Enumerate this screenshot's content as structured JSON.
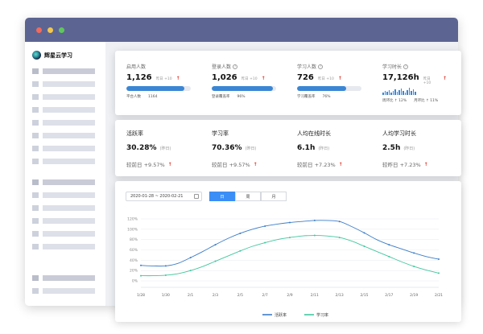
{
  "app": {
    "name": "辉星云学习"
  },
  "stats": [
    {
      "title": "启用人数",
      "value": "1,126",
      "compare": "昨日 +10",
      "bar": 0.9,
      "foot_label": "平台人数",
      "foot_value": "1164"
    },
    {
      "title": "登录人数",
      "value": "1,026",
      "compare": "昨日 +10",
      "bar": 0.95,
      "foot_label": "登录覆盖率",
      "foot_value": "96%"
    },
    {
      "title": "学习人数",
      "value": "726",
      "compare": "昨日 +10",
      "bar": 0.76,
      "foot_label": "学习覆盖率",
      "foot_value": "76%"
    },
    {
      "title": "学习时长",
      "value": "17,126h",
      "compare": "昨日 +10",
      "foot_a": "周环比 ↑ 12%",
      "foot_b": "月环比 ↑ 11%"
    }
  ],
  "metrics": [
    {
      "title": "活跃率",
      "value": "30.28%",
      "note": "(昨日)",
      "foot": "较前日 +9.57%"
    },
    {
      "title": "学习率",
      "value": "70.36%",
      "note": "(昨日)",
      "foot": "较前日 +9.57%"
    },
    {
      "title": "人均在线时长",
      "value": "6.1h",
      "note": "(昨日)",
      "foot": "较前日 +7.23%"
    },
    {
      "title": "人均学习时长",
      "value": "2.5h",
      "note": "(昨日)",
      "foot": "较昨日 +7.23%"
    }
  ],
  "chart_controls": {
    "date_range": "2020-01-28  ~  2020-02-21",
    "segments": [
      "日",
      "周",
      "月"
    ],
    "active_segment": "日"
  },
  "colors": {
    "accent": "#3a8ef6",
    "series1": "#3d7dc8",
    "series2": "#43c69e",
    "titlebar": "#5c6592"
  },
  "chart_data": {
    "type": "line",
    "x": [
      "1/28",
      "1/29",
      "1/30",
      "1/31",
      "2/1",
      "2/2",
      "2/3",
      "2/4",
      "2/5",
      "2/6",
      "2/7",
      "2/8",
      "2/9",
      "2/10",
      "2/11",
      "2/12",
      "2/13",
      "2/14",
      "2/15",
      "2/16",
      "2/17",
      "2/18",
      "2/19",
      "2/20",
      "2/21"
    ],
    "tick_labels": [
      "1/28",
      "1/30",
      "2/1",
      "2/3",
      "2/5",
      "2/7",
      "2/9",
      "2/11",
      "2/13",
      "2/15",
      "2/17",
      "2/19",
      "2/21"
    ],
    "series": [
      {
        "name": "活跃率",
        "values": [
          30,
          29,
          29,
          34,
          45,
          57,
          70,
          82,
          92,
          100,
          106,
          110,
          113,
          115,
          117,
          117,
          115,
          105,
          93,
          80,
          70,
          62,
          54,
          47,
          42
        ]
      },
      {
        "name": "学习率",
        "values": [
          10,
          10,
          11,
          14,
          20,
          28,
          38,
          48,
          58,
          67,
          74,
          80,
          84,
          87,
          88,
          87,
          84,
          77,
          67,
          57,
          47,
          37,
          28,
          21,
          15
        ]
      }
    ],
    "ylim": [
      0,
      120
    ],
    "yticks": [
      "0%",
      "20%",
      "40%",
      "60%",
      "80%",
      "100%",
      "120%"
    ],
    "grid": true,
    "legend": "bottom"
  }
}
